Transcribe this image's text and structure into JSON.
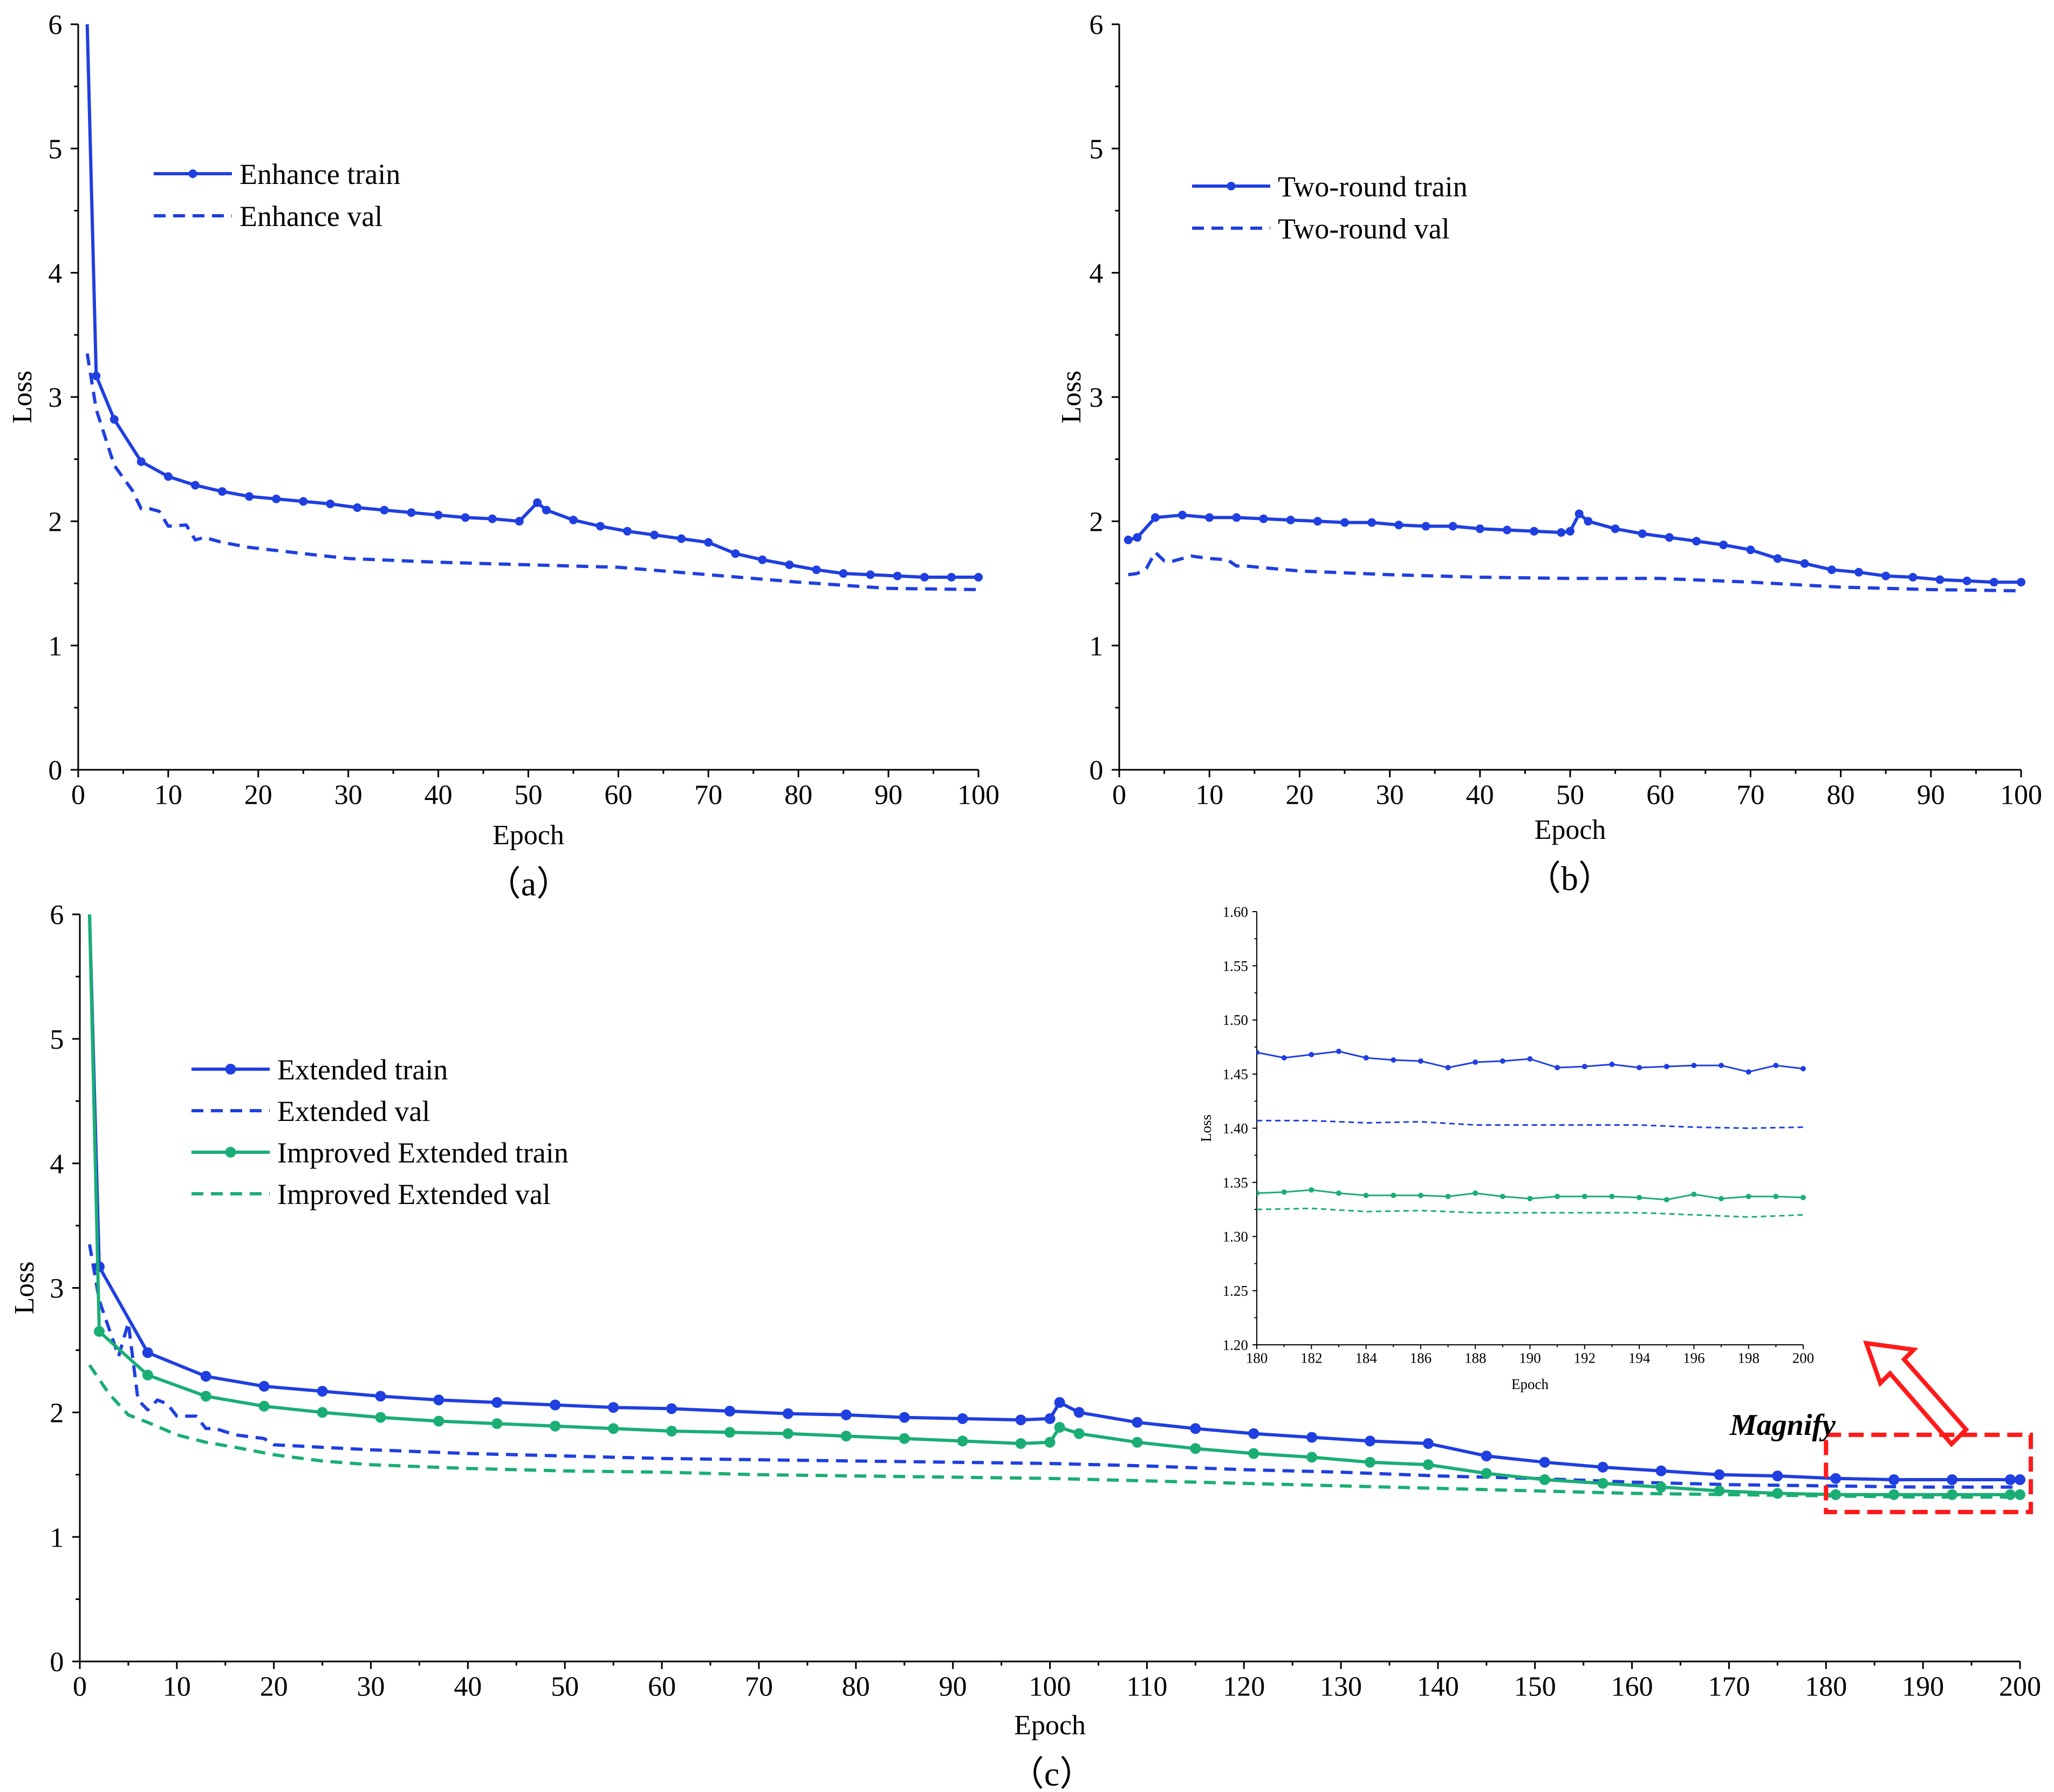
{
  "colors": {
    "blue": "#1f3fe0",
    "green": "#1aae74",
    "axis": "#000000",
    "magnify": "#ff1a1a"
  },
  "chart_data": [
    {
      "id": "a",
      "type": "line",
      "caption": "（a）",
      "xlabel": "Epoch",
      "ylabel": "Loss",
      "xlim": [
        0,
        100
      ],
      "ylim": [
        0,
        6
      ],
      "xticks": [
        0,
        10,
        20,
        30,
        40,
        50,
        60,
        70,
        80,
        90,
        100
      ],
      "yticks": [
        0,
        1,
        2,
        3,
        4,
        5,
        6
      ],
      "series": [
        {
          "name": "Enhance train",
          "color": "blue",
          "style": "solid",
          "markers": true,
          "x": [
            1,
            2,
            4,
            7,
            10,
            13,
            16,
            19,
            22,
            25,
            28,
            31,
            34,
            37,
            40,
            43,
            46,
            49,
            51,
            52,
            55,
            58,
            61,
            64,
            67,
            70,
            73,
            76,
            79,
            82,
            85,
            88,
            91,
            94,
            97,
            100
          ],
          "y": [
            6.0,
            3.17,
            2.82,
            2.48,
            2.36,
            2.29,
            2.24,
            2.2,
            2.18,
            2.16,
            2.14,
            2.11,
            2.09,
            2.07,
            2.05,
            2.03,
            2.02,
            2.0,
            2.15,
            2.09,
            2.01,
            1.96,
            1.92,
            1.89,
            1.86,
            1.83,
            1.74,
            1.69,
            1.65,
            1.61,
            1.58,
            1.57,
            1.56,
            1.55,
            1.55,
            1.55
          ]
        },
        {
          "name": "Enhance val",
          "color": "blue",
          "style": "dashed",
          "markers": false,
          "x": [
            1,
            2,
            4,
            6,
            7,
            8,
            9,
            10,
            12,
            13,
            14,
            16,
            19,
            25,
            30,
            40,
            50,
            60,
            70,
            80,
            90,
            100
          ],
          "y": [
            3.35,
            2.9,
            2.45,
            2.25,
            2.1,
            2.1,
            2.08,
            1.96,
            1.97,
            1.85,
            1.87,
            1.83,
            1.79,
            1.74,
            1.7,
            1.67,
            1.65,
            1.63,
            1.57,
            1.51,
            1.46,
            1.45
          ]
        }
      ]
    },
    {
      "id": "b",
      "type": "line",
      "caption": "（b）",
      "xlabel": "Epoch",
      "ylabel": "Loss",
      "xlim": [
        0,
        100
      ],
      "ylim": [
        0,
        6
      ],
      "xticks": [
        0,
        10,
        20,
        30,
        40,
        50,
        60,
        70,
        80,
        90,
        100
      ],
      "yticks": [
        0,
        1,
        2,
        3,
        4,
        5,
        6
      ],
      "series": [
        {
          "name": "Two-round train",
          "color": "blue",
          "style": "solid",
          "markers": true,
          "x": [
            1,
            2,
            4,
            7,
            10,
            13,
            16,
            19,
            22,
            25,
            28,
            31,
            34,
            37,
            40,
            43,
            46,
            49,
            50,
            51,
            52,
            55,
            58,
            61,
            64,
            67,
            70,
            73,
            76,
            79,
            82,
            85,
            88,
            91,
            94,
            97,
            100
          ],
          "y": [
            1.85,
            1.87,
            2.03,
            2.05,
            2.03,
            2.03,
            2.02,
            2.01,
            2.0,
            1.99,
            1.99,
            1.97,
            1.96,
            1.96,
            1.94,
            1.93,
            1.92,
            1.91,
            1.92,
            2.06,
            2.0,
            1.94,
            1.9,
            1.87,
            1.84,
            1.81,
            1.77,
            1.7,
            1.66,
            1.61,
            1.59,
            1.56,
            1.55,
            1.53,
            1.52,
            1.51,
            1.51
          ]
        },
        {
          "name": "Two-round val",
          "color": "blue",
          "style": "dashed",
          "markers": false,
          "x": [
            1,
            2,
            3,
            4,
            5,
            6,
            8,
            10,
            12,
            13,
            14,
            20,
            30,
            40,
            50,
            60,
            70,
            80,
            90,
            100
          ],
          "y": [
            1.57,
            1.58,
            1.62,
            1.75,
            1.68,
            1.68,
            1.72,
            1.7,
            1.69,
            1.64,
            1.64,
            1.6,
            1.57,
            1.55,
            1.54,
            1.54,
            1.51,
            1.47,
            1.45,
            1.44
          ]
        }
      ]
    },
    {
      "id": "c",
      "type": "line",
      "caption": "（c）",
      "xlabel": "Epoch",
      "ylabel": "Loss",
      "xlim": [
        0,
        200
      ],
      "ylim": [
        0,
        6
      ],
      "xticks": [
        0,
        10,
        20,
        30,
        40,
        50,
        60,
        70,
        80,
        90,
        100,
        110,
        120,
        130,
        140,
        150,
        160,
        170,
        180,
        190,
        200
      ],
      "yticks": [
        0,
        1,
        2,
        3,
        4,
        5,
        6
      ],
      "annotation": "Magnify",
      "series": [
        {
          "name": "Extended train",
          "color": "blue",
          "style": "solid",
          "markers": true,
          "x": [
            1,
            2,
            7,
            13,
            19,
            25,
            31,
            37,
            43,
            49,
            55,
            61,
            67,
            73,
            79,
            85,
            91,
            97,
            100,
            101,
            103,
            109,
            115,
            121,
            127,
            133,
            139,
            145,
            151,
            157,
            163,
            169,
            175,
            181,
            187,
            193,
            199,
            200
          ],
          "y": [
            6.0,
            3.17,
            2.48,
            2.29,
            2.21,
            2.17,
            2.13,
            2.1,
            2.08,
            2.06,
            2.04,
            2.03,
            2.01,
            1.99,
            1.98,
            1.96,
            1.95,
            1.94,
            1.95,
            2.08,
            2.0,
            1.92,
            1.87,
            1.83,
            1.8,
            1.77,
            1.75,
            1.65,
            1.6,
            1.56,
            1.53,
            1.5,
            1.49,
            1.47,
            1.46,
            1.46,
            1.46,
            1.46
          ]
        },
        {
          "name": "Extended val",
          "color": "blue",
          "style": "dashed",
          "markers": false,
          "x": [
            1,
            2,
            4,
            5,
            6,
            7,
            8,
            9,
            10,
            12,
            13,
            14,
            16,
            19,
            20,
            25,
            30,
            40,
            50,
            60,
            70,
            80,
            90,
            100,
            110,
            120,
            130,
            140,
            150,
            160,
            170,
            180,
            190,
            200
          ],
          "y": [
            3.35,
            2.9,
            2.45,
            2.72,
            2.1,
            2.02,
            2.1,
            2.07,
            1.97,
            1.97,
            1.87,
            1.87,
            1.82,
            1.79,
            1.74,
            1.72,
            1.7,
            1.67,
            1.65,
            1.63,
            1.62,
            1.61,
            1.6,
            1.59,
            1.57,
            1.54,
            1.52,
            1.49,
            1.47,
            1.44,
            1.42,
            1.41,
            1.4,
            1.4
          ]
        },
        {
          "name": "Improved Extended train",
          "color": "green",
          "style": "solid",
          "markers": true,
          "x": [
            1,
            2,
            7,
            13,
            19,
            25,
            31,
            37,
            43,
            49,
            55,
            61,
            67,
            73,
            79,
            85,
            91,
            97,
            100,
            101,
            103,
            109,
            115,
            121,
            127,
            133,
            139,
            145,
            151,
            157,
            163,
            169,
            175,
            181,
            187,
            193,
            199,
            200
          ],
          "y": [
            6.0,
            2.65,
            2.3,
            2.13,
            2.05,
            2.0,
            1.96,
            1.93,
            1.91,
            1.89,
            1.87,
            1.85,
            1.84,
            1.83,
            1.81,
            1.79,
            1.77,
            1.75,
            1.76,
            1.88,
            1.83,
            1.76,
            1.71,
            1.67,
            1.64,
            1.6,
            1.58,
            1.51,
            1.46,
            1.43,
            1.4,
            1.37,
            1.35,
            1.34,
            1.34,
            1.34,
            1.34,
            1.34
          ]
        },
        {
          "name": "Improved Extended val",
          "color": "green",
          "style": "dashed",
          "markers": false,
          "x": [
            1,
            3,
            5,
            7,
            10,
            13,
            16,
            20,
            25,
            30,
            40,
            50,
            60,
            70,
            80,
            90,
            100,
            110,
            120,
            130,
            140,
            150,
            160,
            170,
            180,
            190,
            200
          ],
          "y": [
            2.38,
            2.15,
            1.98,
            1.92,
            1.82,
            1.76,
            1.72,
            1.66,
            1.61,
            1.58,
            1.55,
            1.53,
            1.52,
            1.5,
            1.49,
            1.48,
            1.47,
            1.45,
            1.43,
            1.41,
            1.39,
            1.37,
            1.35,
            1.34,
            1.33,
            1.32,
            1.32
          ]
        }
      ]
    },
    {
      "id": "inset",
      "type": "line",
      "xlabel": "Epoch",
      "ylabel": "Loss",
      "xlim": [
        180,
        200
      ],
      "ylim": [
        1.2,
        1.6
      ],
      "xticks": [
        180,
        182,
        184,
        186,
        188,
        190,
        192,
        194,
        196,
        198,
        200
      ],
      "yticks": [
        "1.20",
        "1.25",
        "1.30",
        "1.35",
        "1.40",
        "1.45",
        "1.50",
        "1.55",
        "1.60"
      ],
      "series": [
        {
          "name": "Extended train",
          "color": "blue",
          "style": "solid",
          "markers": true,
          "x": [
            180,
            181,
            182,
            183,
            184,
            185,
            186,
            187,
            188,
            189,
            190,
            191,
            192,
            193,
            194,
            195,
            196,
            197,
            198,
            199,
            200
          ],
          "y": [
            1.47,
            1.465,
            1.468,
            1.471,
            1.465,
            1.463,
            1.462,
            1.456,
            1.461,
            1.462,
            1.464,
            1.456,
            1.457,
            1.459,
            1.456,
            1.457,
            1.458,
            1.458,
            1.452,
            1.458,
            1.455
          ]
        },
        {
          "name": "Extended val",
          "color": "blue",
          "style": "dashed",
          "markers": false,
          "x": [
            180,
            182,
            184,
            186,
            188,
            190,
            192,
            194,
            196,
            198,
            200
          ],
          "y": [
            1.407,
            1.407,
            1.405,
            1.406,
            1.403,
            1.403,
            1.403,
            1.403,
            1.401,
            1.4,
            1.401
          ]
        },
        {
          "name": "Improved Extended train",
          "color": "green",
          "style": "solid",
          "markers": true,
          "x": [
            180,
            181,
            182,
            183,
            184,
            185,
            186,
            187,
            188,
            189,
            190,
            191,
            192,
            193,
            194,
            195,
            196,
            197,
            198,
            199,
            200
          ],
          "y": [
            1.34,
            1.341,
            1.343,
            1.34,
            1.338,
            1.338,
            1.338,
            1.337,
            1.34,
            1.337,
            1.335,
            1.337,
            1.337,
            1.337,
            1.336,
            1.334,
            1.339,
            1.335,
            1.337,
            1.337,
            1.336
          ]
        },
        {
          "name": "Improved Extended val",
          "color": "green",
          "style": "dashed",
          "markers": false,
          "x": [
            180,
            182,
            184,
            186,
            188,
            190,
            192,
            194,
            196,
            198,
            200
          ],
          "y": [
            1.325,
            1.326,
            1.323,
            1.324,
            1.322,
            1.322,
            1.322,
            1.322,
            1.32,
            1.318,
            1.32
          ]
        }
      ]
    }
  ]
}
